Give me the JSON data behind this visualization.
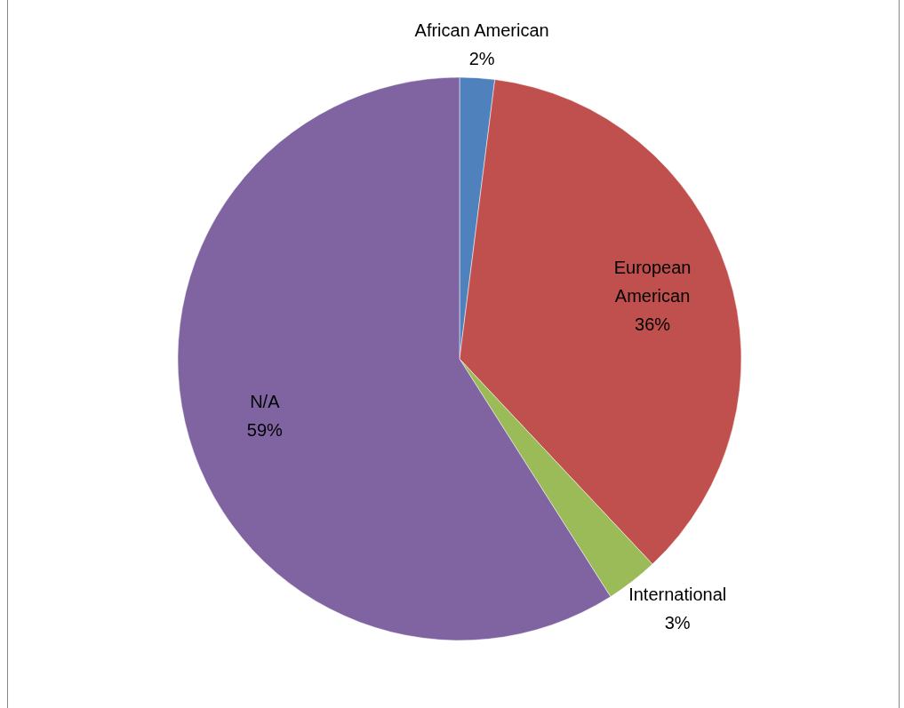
{
  "chart_data": {
    "type": "pie",
    "categories": [
      "African American",
      "European American",
      "International",
      "N/A"
    ],
    "values": [
      2,
      36,
      3,
      59
    ],
    "colors": [
      "#4f81bd",
      "#c0504d",
      "#9bbb59",
      "#8064a2"
    ],
    "value_labels": [
      "2%",
      "36%",
      "3%",
      "59%"
    ]
  }
}
